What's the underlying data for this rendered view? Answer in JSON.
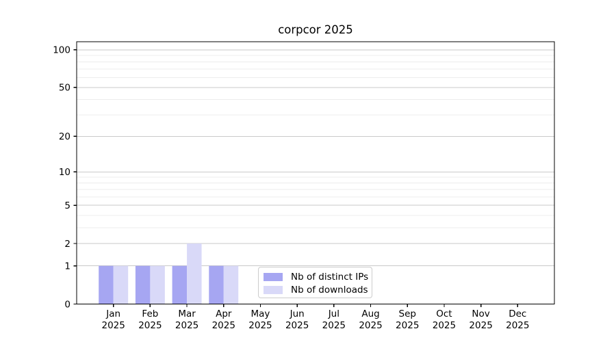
{
  "palette": {
    "grid_major": "#c9c9c9",
    "grid_minor": "#ececec",
    "spine": "#000000",
    "text": "#000000"
  },
  "chart_data": {
    "type": "bar",
    "title": "corpcor 2025",
    "x": [
      "Jan 2025",
      "Feb 2025",
      "Mar 2025",
      "Apr 2025",
      "May 2025",
      "Jun 2025",
      "Jul 2025",
      "Aug 2025",
      "Sep 2025",
      "Oct 2025",
      "Nov 2025",
      "Dec 2025"
    ],
    "series": [
      {
        "name": "Nb of distinct IPs",
        "color": "#a6a6f2",
        "values": [
          1,
          1,
          1,
          1,
          0,
          0,
          0,
          0,
          0,
          0,
          0,
          0
        ]
      },
      {
        "name": "Nb of downloads",
        "color": "#d9d9f8",
        "values": [
          1,
          1,
          2,
          1,
          0,
          0,
          0,
          0,
          0,
          0,
          0,
          0
        ]
      }
    ],
    "yscale": "log1p",
    "ylim": [
      0,
      116
    ],
    "y_ticks": [
      100,
      50,
      20,
      10,
      5,
      2,
      1,
      0
    ],
    "y_minor_gridlines": [
      3,
      4,
      6,
      7,
      8,
      9,
      30,
      40,
      60,
      70,
      80,
      90
    ],
    "grid": true,
    "legend_position": "lower center"
  }
}
